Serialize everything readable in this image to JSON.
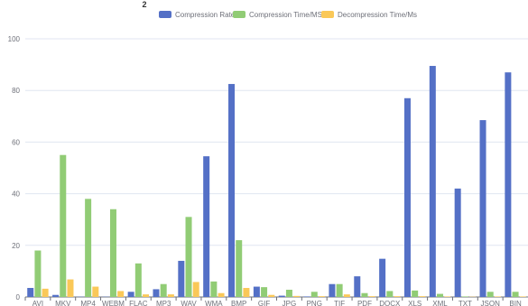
{
  "chart_data": {
    "type": "bar",
    "title": "2",
    "categories": [
      "AVI",
      "MKV",
      "MP4",
      "WEBM",
      "FLAC",
      "MP3",
      "WAV",
      "WMA",
      "BMP",
      "GIF",
      "JPG",
      "PNG",
      "TIF",
      "PDF",
      "DOCX",
      "XLS",
      "XML",
      "TXT",
      "JSON",
      "BIN"
    ],
    "series": [
      {
        "name": "Compression Rate",
        "color": "#5470c6",
        "values": [
          3.5,
          0.8,
          0.1,
          0.1,
          2.0,
          3.0,
          14.0,
          54.5,
          82.5,
          4.0,
          0.5,
          0.2,
          5.0,
          8.0,
          14.8,
          77.0,
          89.5,
          42.0,
          68.5,
          87.0
        ]
      },
      {
        "name": "Compression Time/MS",
        "color": "#91cc75",
        "values": [
          18.0,
          55.0,
          38.0,
          34.0,
          13.0,
          5.0,
          31.0,
          6.0,
          22.0,
          3.8,
          2.8,
          2.0,
          5.0,
          1.5,
          2.3,
          2.5,
          1.2,
          0.2,
          2.0,
          2.0
        ]
      },
      {
        "name": "Decompression Time/Ms",
        "color": "#fac858",
        "values": [
          3.2,
          6.8,
          4.0,
          2.3,
          1.0,
          1.0,
          5.8,
          1.5,
          3.5,
          0.8,
          0.4,
          0.3,
          1.0,
          0.3,
          0.3,
          0.3,
          0.2,
          0.1,
          0.2,
          0.2
        ]
      }
    ],
    "xlabel": "",
    "ylabel": "",
    "ylim": [
      0,
      100
    ],
    "yticks": [
      0,
      20,
      40,
      60,
      80,
      100
    ],
    "grid": true,
    "legend_position": "top-center"
  }
}
